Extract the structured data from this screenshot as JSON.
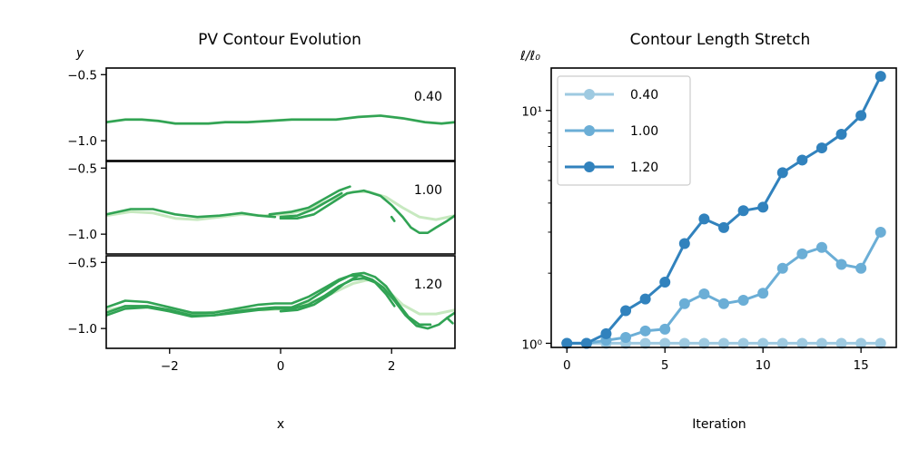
{
  "chart_data": [
    {
      "type": "line",
      "title": "PV Contour Evolution",
      "xlabel": "x",
      "ylabel": "y",
      "xlim": [
        -3.14159,
        3.14159
      ],
      "x_ticks": [
        -2,
        0,
        2
      ],
      "x_tick_labels": [
        "−2",
        "0",
        "2"
      ],
      "grid": false,
      "panels": [
        {
          "label": "0.40",
          "ylim": [
            -1.15,
            -0.45
          ],
          "y_ticks": [
            -0.5,
            -1.0
          ],
          "y_tick_labels": [
            "−0.5",
            "−1.0"
          ],
          "colors": {
            "initial": "#c7e9c0",
            "current": "#31a354"
          },
          "initial": [
            [
              [
                -3.14,
                -0.86
              ],
              [
                -2.8,
                -0.84
              ],
              [
                -2.5,
                -0.84
              ],
              [
                -2.2,
                -0.85
              ],
              [
                -1.9,
                -0.87
              ],
              [
                -1.6,
                -0.87
              ],
              [
                -1.3,
                -0.87
              ],
              [
                -1.0,
                -0.86
              ],
              [
                -0.6,
                -0.86
              ],
              [
                -0.2,
                -0.85
              ],
              [
                0.2,
                -0.84
              ],
              [
                0.6,
                -0.84
              ],
              [
                1.0,
                -0.84
              ],
              [
                1.4,
                -0.82
              ],
              [
                1.8,
                -0.81
              ],
              [
                2.2,
                -0.83
              ],
              [
                2.6,
                -0.86
              ],
              [
                2.9,
                -0.87
              ],
              [
                3.14,
                -0.86
              ]
            ]
          ],
          "current": [
            [
              [
                -3.14,
                -0.86
              ],
              [
                -2.8,
                -0.84
              ],
              [
                -2.5,
                -0.84
              ],
              [
                -2.2,
                -0.85
              ],
              [
                -1.9,
                -0.87
              ],
              [
                -1.6,
                -0.87
              ],
              [
                -1.3,
                -0.87
              ],
              [
                -1.0,
                -0.86
              ],
              [
                -0.6,
                -0.86
              ],
              [
                -0.2,
                -0.85
              ],
              [
                0.2,
                -0.84
              ],
              [
                0.6,
                -0.84
              ],
              [
                1.0,
                -0.84
              ],
              [
                1.4,
                -0.82
              ],
              [
                1.8,
                -0.81
              ],
              [
                2.2,
                -0.83
              ],
              [
                2.6,
                -0.86
              ],
              [
                2.9,
                -0.87
              ],
              [
                3.14,
                -0.86
              ]
            ]
          ]
        },
        {
          "label": "1.00",
          "ylim": [
            -1.15,
            -0.45
          ],
          "y_ticks": [
            -0.5,
            -1.0
          ],
          "y_tick_labels": [
            "−0.5",
            "−1.0"
          ],
          "colors": {
            "initial": "#c7e9c0",
            "current": "#31a354"
          },
          "initial": [
            [
              [
                -3.14,
                -0.86
              ],
              [
                -2.7,
                -0.83
              ],
              [
                -2.3,
                -0.84
              ],
              [
                -1.9,
                -0.88
              ],
              [
                -1.5,
                -0.89
              ],
              [
                -1.1,
                -0.87
              ],
              [
                -0.7,
                -0.85
              ],
              [
                -0.3,
                -0.86
              ],
              [
                0.1,
                -0.85
              ],
              [
                0.5,
                -0.81
              ],
              [
                0.9,
                -0.74
              ],
              [
                1.3,
                -0.68
              ],
              [
                1.6,
                -0.68
              ],
              [
                1.9,
                -0.72
              ],
              [
                2.2,
                -0.8
              ],
              [
                2.5,
                -0.87
              ],
              [
                2.8,
                -0.89
              ],
              [
                3.14,
                -0.86
              ]
            ]
          ],
          "current": [
            [
              [
                -3.14,
                -0.85
              ],
              [
                -2.7,
                -0.81
              ],
              [
                -2.3,
                -0.81
              ],
              [
                -1.9,
                -0.85
              ],
              [
                -1.5,
                -0.87
              ],
              [
                -1.1,
                -0.86
              ],
              [
                -0.7,
                -0.84
              ],
              [
                -0.4,
                -0.86
              ],
              [
                -0.1,
                -0.87
              ]
            ],
            [
              [
                -0.2,
                -0.85
              ],
              [
                0.2,
                -0.83
              ],
              [
                0.5,
                -0.8
              ],
              [
                0.8,
                -0.73
              ],
              [
                1.05,
                -0.67
              ],
              [
                1.25,
                -0.64
              ]
            ],
            [
              [
                0.0,
                -0.87
              ],
              [
                0.3,
                -0.86
              ],
              [
                0.6,
                -0.81
              ],
              [
                0.85,
                -0.75
              ],
              [
                1.1,
                -0.69
              ]
            ],
            [
              [
                0.0,
                -0.88
              ],
              [
                0.3,
                -0.88
              ],
              [
                0.6,
                -0.85
              ],
              [
                0.9,
                -0.77
              ],
              [
                1.2,
                -0.69
              ],
              [
                1.5,
                -0.67
              ],
              [
                1.8,
                -0.71
              ],
              [
                2.0,
                -0.78
              ],
              [
                2.2,
                -0.87
              ],
              [
                2.35,
                -0.95
              ],
              [
                2.5,
                -0.99
              ],
              [
                2.65,
                -0.99
              ],
              [
                2.8,
                -0.95
              ],
              [
                3.0,
                -0.9
              ],
              [
                3.14,
                -0.86
              ]
            ],
            [
              [
                2.0,
                -0.87
              ],
              [
                2.05,
                -0.9
              ]
            ]
          ]
        },
        {
          "label": "1.20",
          "ylim": [
            -1.15,
            -0.45
          ],
          "y_ticks": [
            -0.5,
            -1.0
          ],
          "y_tick_labels": [
            "−0.5",
            "−1.0"
          ],
          "colors": {
            "initial": "#c7e9c0",
            "current": "#31a354"
          },
          "initial": [
            [
              [
                -3.14,
                -0.86
              ],
              [
                -2.7,
                -0.83
              ],
              [
                -2.3,
                -0.84
              ],
              [
                -1.9,
                -0.88
              ],
              [
                -1.5,
                -0.89
              ],
              [
                -1.1,
                -0.87
              ],
              [
                -0.7,
                -0.85
              ],
              [
                -0.3,
                -0.86
              ],
              [
                0.1,
                -0.85
              ],
              [
                0.5,
                -0.81
              ],
              [
                0.9,
                -0.74
              ],
              [
                1.3,
                -0.66
              ],
              [
                1.6,
                -0.63
              ],
              [
                1.9,
                -0.7
              ],
              [
                2.2,
                -0.82
              ],
              [
                2.5,
                -0.89
              ],
              [
                2.8,
                -0.89
              ],
              [
                3.14,
                -0.86
              ]
            ]
          ],
          "current": [
            [
              [
                -3.14,
                -0.84
              ],
              [
                -2.8,
                -0.79
              ],
              [
                -2.4,
                -0.8
              ],
              [
                -2.0,
                -0.84
              ],
              [
                -1.6,
                -0.88
              ],
              [
                -1.2,
                -0.88
              ],
              [
                -0.8,
                -0.85
              ],
              [
                -0.4,
                -0.82
              ],
              [
                -0.1,
                -0.81
              ],
              [
                0.2,
                -0.81
              ],
              [
                0.5,
                -0.76
              ],
              [
                0.8,
                -0.69
              ],
              [
                1.05,
                -0.63
              ],
              [
                1.25,
                -0.6
              ],
              [
                1.45,
                -0.6
              ],
              [
                1.65,
                -0.63
              ],
              [
                1.85,
                -0.69
              ],
              [
                2.05,
                -0.79
              ],
              [
                2.25,
                -0.9
              ],
              [
                2.45,
                -0.98
              ],
              [
                2.65,
                -1.0
              ],
              [
                2.85,
                -0.97
              ],
              [
                3.0,
                -0.92
              ],
              [
                3.14,
                -0.88
              ]
            ],
            [
              [
                -3.14,
                -0.88
              ],
              [
                -2.8,
                -0.83
              ],
              [
                -2.4,
                -0.83
              ],
              [
                -2.0,
                -0.86
              ],
              [
                -1.6,
                -0.9
              ],
              [
                -1.2,
                -0.9
              ],
              [
                -0.8,
                -0.87
              ],
              [
                -0.4,
                -0.85
              ],
              [
                -0.1,
                -0.84
              ],
              [
                0.2,
                -0.84
              ],
              [
                0.5,
                -0.79
              ],
              [
                0.8,
                -0.71
              ],
              [
                1.05,
                -0.64
              ],
              [
                1.3,
                -0.59
              ],
              [
                1.5,
                -0.58
              ],
              [
                1.7,
                -0.61
              ],
              [
                1.9,
                -0.68
              ],
              [
                2.1,
                -0.8
              ],
              [
                2.3,
                -0.91
              ],
              [
                2.5,
                -0.97
              ],
              [
                2.7,
                -0.97
              ]
            ],
            [
              [
                -3.14,
                -0.9
              ],
              [
                -2.8,
                -0.85
              ],
              [
                -2.4,
                -0.84
              ],
              [
                -2.0,
                -0.87
              ],
              [
                -1.6,
                -0.91
              ],
              [
                -1.2,
                -0.9
              ],
              [
                -0.8,
                -0.88
              ],
              [
                -0.4,
                -0.86
              ],
              [
                -0.1,
                -0.85
              ],
              [
                0.2,
                -0.85
              ],
              [
                0.5,
                -0.82
              ],
              [
                0.8,
                -0.75
              ],
              [
                1.05,
                -0.68
              ],
              [
                1.3,
                -0.63
              ],
              [
                1.5,
                -0.62
              ],
              [
                1.7,
                -0.65
              ],
              [
                1.9,
                -0.74
              ],
              [
                2.05,
                -0.83
              ]
            ],
            [
              [
                0.0,
                -0.87
              ],
              [
                0.3,
                -0.86
              ],
              [
                0.6,
                -0.82
              ],
              [
                0.9,
                -0.74
              ],
              [
                1.15,
                -0.66
              ],
              [
                1.4,
                -0.6
              ]
            ],
            [
              [
                3.0,
                -0.92
              ],
              [
                3.1,
                -0.96
              ]
            ]
          ]
        }
      ]
    },
    {
      "type": "line",
      "title": "Contour Length Stretch",
      "xlabel": "Iteration",
      "ylabel": "ℓ/ℓ₀",
      "y_scale": "log",
      "xlim": [
        -0.8,
        16.8
      ],
      "ylim": [
        0.96,
        15.2
      ],
      "x_ticks": [
        0,
        5,
        10,
        15
      ],
      "x_tick_labels": [
        "0",
        "5",
        "10",
        "15"
      ],
      "y_major_ticks": [
        1,
        10
      ],
      "y_major_labels": [
        "10⁰",
        "10¹"
      ],
      "y_minor_ticks": [
        2,
        3,
        4,
        5,
        6,
        7,
        8,
        9
      ],
      "grid": false,
      "legend_position": "upper-left",
      "x": [
        0,
        1,
        2,
        3,
        4,
        5,
        6,
        7,
        8,
        9,
        10,
        11,
        12,
        13,
        14,
        15,
        16
      ],
      "series": [
        {
          "name": "0.40",
          "color": "#9ecae1",
          "values": [
            1.0,
            1.0,
            1.0,
            1.0,
            1.0,
            1.0,
            1.0,
            1.0,
            1.0,
            1.0,
            1.0,
            1.0,
            1.0,
            1.0,
            1.0,
            1.0,
            1.0
          ]
        },
        {
          "name": "1.00",
          "color": "#6baed6",
          "values": [
            1.0,
            1.0,
            1.03,
            1.06,
            1.13,
            1.15,
            1.48,
            1.63,
            1.48,
            1.53,
            1.64,
            2.1,
            2.42,
            2.58,
            2.18,
            2.1,
            3.0
          ]
        },
        {
          "name": "1.20",
          "color": "#3182bd",
          "values": [
            1.0,
            1.0,
            1.1,
            1.38,
            1.55,
            1.83,
            2.68,
            3.42,
            3.14,
            3.71,
            3.84,
            5.4,
            6.12,
            6.9,
            7.9,
            9.5,
            14.0
          ]
        }
      ]
    }
  ]
}
